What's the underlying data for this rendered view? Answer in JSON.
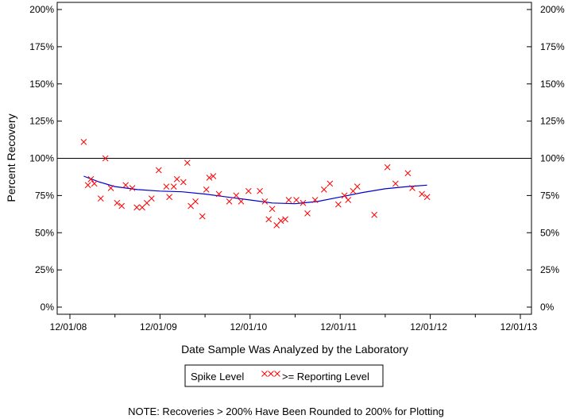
{
  "chart_data": {
    "type": "scatter",
    "xlabel": "Date Sample Was Analyzed by the Laboratory",
    "ylabel": "Percent Recovery",
    "x_tick_labels": [
      "12/01/08",
      "12/01/09",
      "12/01/10",
      "12/01/11",
      "12/01/12",
      "12/01/13"
    ],
    "xlim": [
      "2008-12-01",
      "2013-12-01"
    ],
    "y_tick_values": [
      0,
      25,
      50,
      75,
      100,
      125,
      150,
      175,
      200
    ],
    "y_tick_labels": [
      "0%",
      "25%",
      "50%",
      "75%",
      "100%",
      "125%",
      "150%",
      "175%",
      "200%"
    ],
    "ylim": [
      -3,
      203
    ],
    "reference_line": 100,
    "legend": {
      "title": "Spike Level",
      "entries": [
        ">= Reporting Level"
      ],
      "placement": "bottom-center"
    },
    "note": "NOTE: Recoveries > 200% Have Been Rounded to 200% for Plotting",
    "colors": {
      "points": "#ff0000",
      "trend": "#0000cc",
      "axes": "#000000"
    },
    "series": [
      {
        "name": ">= Reporting Level",
        "marker": "x",
        "points": [
          [
            "2009-01-26",
            111
          ],
          [
            "2009-02-12",
            82
          ],
          [
            "2009-02-24",
            86
          ],
          [
            "2009-03-10",
            83
          ],
          [
            "2009-04-05",
            73
          ],
          [
            "2009-04-24",
            100
          ],
          [
            "2009-05-16",
            80
          ],
          [
            "2009-06-10",
            70
          ],
          [
            "2009-06-29",
            68
          ],
          [
            "2009-07-15",
            82
          ],
          [
            "2009-08-11",
            80
          ],
          [
            "2009-08-29",
            67
          ],
          [
            "2009-09-20",
            67
          ],
          [
            "2009-10-09",
            70
          ],
          [
            "2009-10-28",
            73
          ],
          [
            "2009-11-26",
            92
          ],
          [
            "2009-12-27",
            81
          ],
          [
            "2010-01-08",
            74
          ],
          [
            "2010-01-26",
            81
          ],
          [
            "2010-02-08",
            86
          ],
          [
            "2010-03-06",
            84
          ],
          [
            "2010-03-22",
            97
          ],
          [
            "2010-04-05",
            68
          ],
          [
            "2010-04-24",
            71
          ],
          [
            "2010-05-22",
            61
          ],
          [
            "2010-06-07",
            79
          ],
          [
            "2010-06-19",
            87
          ],
          [
            "2010-07-05",
            88
          ],
          [
            "2010-07-28",
            76
          ],
          [
            "2010-09-08",
            71
          ],
          [
            "2010-10-06",
            75
          ],
          [
            "2010-10-26",
            71
          ],
          [
            "2010-11-25",
            78
          ],
          [
            "2011-01-10",
            78
          ],
          [
            "2011-01-30",
            71
          ],
          [
            "2011-02-15",
            59
          ],
          [
            "2011-03-01",
            66
          ],
          [
            "2011-03-19",
            55
          ],
          [
            "2011-04-05",
            58
          ],
          [
            "2011-04-23",
            59
          ],
          [
            "2011-05-07",
            72
          ],
          [
            "2011-06-07",
            72
          ],
          [
            "2011-07-04",
            70
          ],
          [
            "2011-07-22",
            63
          ],
          [
            "2011-08-22",
            72
          ],
          [
            "2011-09-27",
            79
          ],
          [
            "2011-10-21",
            83
          ],
          [
            "2011-11-24",
            69
          ],
          [
            "2011-12-19",
            75
          ],
          [
            "2012-01-03",
            72
          ],
          [
            "2012-01-23",
            78
          ],
          [
            "2012-02-09",
            81
          ],
          [
            "2012-04-18",
            62
          ],
          [
            "2012-06-10",
            94
          ],
          [
            "2012-07-13",
            83
          ],
          [
            "2012-09-01",
            90
          ],
          [
            "2012-09-19",
            80
          ],
          [
            "2012-10-28",
            76
          ],
          [
            "2012-11-18",
            74
          ]
        ]
      }
    ],
    "trend_line": {
      "points": [
        [
          "2009-01-26",
          88
        ],
        [
          "2009-04-01",
          84
        ],
        [
          "2009-06-01",
          81
        ],
        [
          "2009-09-01",
          79
        ],
        [
          "2009-12-01",
          78
        ],
        [
          "2010-03-01",
          77.5
        ],
        [
          "2010-06-01",
          76
        ],
        [
          "2010-09-01",
          74
        ],
        [
          "2010-12-01",
          72
        ],
        [
          "2011-03-01",
          70
        ],
        [
          "2011-06-01",
          69.5
        ],
        [
          "2011-09-01",
          71
        ],
        [
          "2011-12-01",
          74
        ],
        [
          "2012-03-01",
          77
        ],
        [
          "2012-06-01",
          79.5
        ],
        [
          "2012-09-01",
          81
        ],
        [
          "2012-11-18",
          82
        ]
      ]
    }
  }
}
